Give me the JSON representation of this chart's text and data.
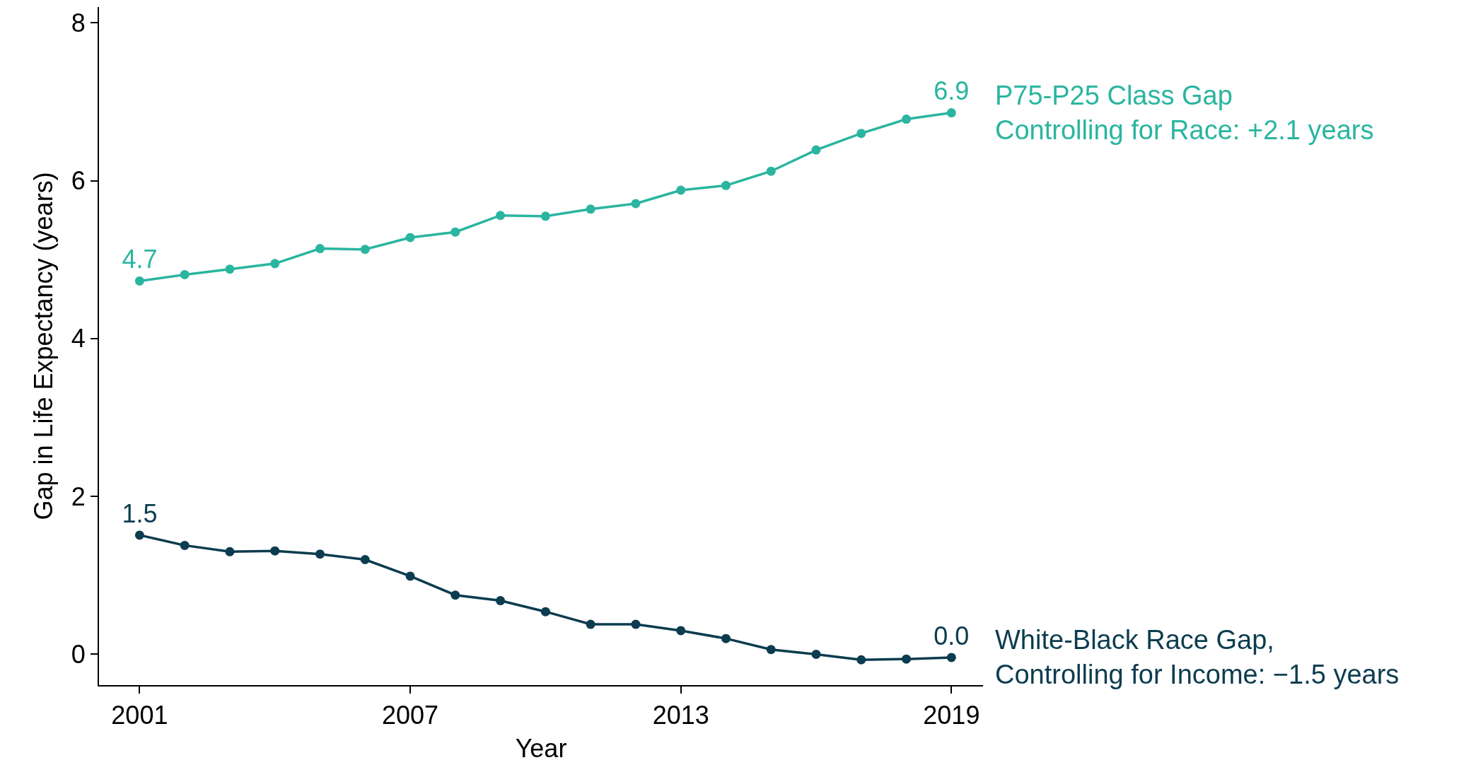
{
  "chart_data": {
    "type": "line",
    "xlabel": "Year",
    "ylabel": "Gap in Life Expectancy (years)",
    "x": [
      2001,
      2002,
      2003,
      2004,
      2005,
      2006,
      2007,
      2008,
      2009,
      2010,
      2011,
      2012,
      2013,
      2014,
      2015,
      2016,
      2017,
      2018,
      2019
    ],
    "series": [
      {
        "name": "P75-P25 Class Gap\nControlling for Race: +2.1 years",
        "color": "#2ab5a0",
        "values": [
          4.73,
          4.81,
          4.88,
          4.95,
          5.14,
          5.13,
          5.28,
          5.35,
          5.56,
          5.55,
          5.64,
          5.71,
          5.88,
          5.94,
          6.12,
          6.39,
          6.6,
          6.78,
          6.86
        ],
        "value_labels": [
          "4.7",
          null,
          null,
          null,
          null,
          null,
          null,
          null,
          null,
          null,
          null,
          null,
          null,
          null,
          null,
          null,
          null,
          null,
          "6.9"
        ]
      },
      {
        "name": "White-Black Race Gap,\nControlling for Income: −1.5 years",
        "color": "#0c3c4f",
        "values": [
          1.51,
          1.38,
          1.3,
          1.31,
          1.27,
          1.2,
          0.99,
          0.75,
          0.68,
          0.54,
          0.38,
          0.38,
          0.3,
          0.2,
          0.06,
          0.0,
          -0.07,
          -0.06,
          -0.04
        ],
        "value_labels": [
          "1.5",
          null,
          null,
          null,
          null,
          null,
          null,
          null,
          null,
          null,
          null,
          null,
          null,
          null,
          null,
          null,
          null,
          null,
          "0.0"
        ]
      }
    ],
    "xlim": [
      2000.1,
      2019.7
    ],
    "xticks": [
      2001,
      2007,
      2013,
      2019
    ],
    "ylim": [
      -0.39,
      8.2
    ],
    "yticks": [
      0,
      2,
      4,
      6,
      8
    ],
    "legend": false,
    "marker": "circle",
    "line_style": "solid"
  }
}
